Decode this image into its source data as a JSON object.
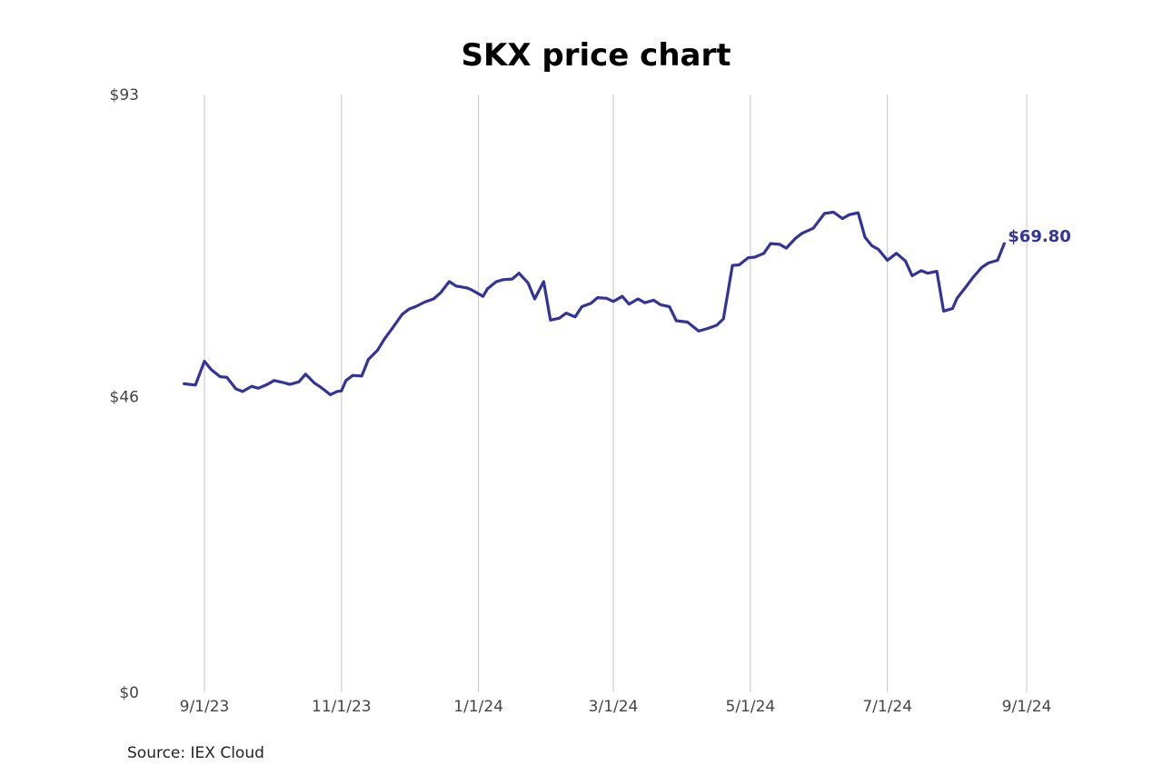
{
  "chart_data": {
    "type": "line",
    "title": "SKX price chart",
    "source": "Source: IEX Cloud",
    "xlabel": "",
    "ylabel": "",
    "ylim": [
      0,
      93
    ],
    "yticks": [
      0,
      46,
      93
    ],
    "ytick_labels": [
      "$0",
      "$46",
      "$93"
    ],
    "xticks": [
      "2023-09-01",
      "2023-11-01",
      "2024-01-01",
      "2024-03-01",
      "2024-05-01",
      "2024-07-01",
      "2024-09-01"
    ],
    "xtick_labels": [
      "9/1/23",
      "11/1/23",
      "1/1/24",
      "3/1/24",
      "5/1/24",
      "7/1/24",
      "9/1/24"
    ],
    "xlim": [
      "2023-08-23",
      "2024-09-01"
    ],
    "grid": "vertical",
    "last_value_label": "$69.80",
    "line_color": "#333399",
    "series": [
      {
        "x": [
          "2023-08-23",
          "2023-08-28",
          "2023-09-01",
          "2023-09-04",
          "2023-09-08",
          "2023-09-11",
          "2023-09-15",
          "2023-09-18",
          "2023-09-22",
          "2023-09-25",
          "2023-09-29",
          "2023-10-02",
          "2023-10-06",
          "2023-10-09",
          "2023-10-13",
          "2023-10-16",
          "2023-10-20",
          "2023-10-23",
          "2023-10-27",
          "2023-10-30",
          "2023-11-01",
          "2023-11-03",
          "2023-11-06",
          "2023-11-10",
          "2023-11-13",
          "2023-11-17",
          "2023-11-20",
          "2023-11-24",
          "2023-11-28",
          "2023-12-01",
          "2023-12-04",
          "2023-12-08",
          "2023-12-12",
          "2023-12-15",
          "2023-12-19",
          "2023-12-22",
          "2023-12-27",
          "2023-12-29",
          "2024-01-03",
          "2024-01-05",
          "2024-01-09",
          "2024-01-12",
          "2024-01-16",
          "2024-01-19",
          "2024-01-23",
          "2024-01-26",
          "2024-01-30",
          "2024-02-02",
          "2024-02-06",
          "2024-02-09",
          "2024-02-13",
          "2024-02-16",
          "2024-02-20",
          "2024-02-23",
          "2024-02-27",
          "2024-03-01",
          "2024-03-05",
          "2024-03-08",
          "2024-03-12",
          "2024-03-15",
          "2024-03-19",
          "2024-03-22",
          "2024-03-26",
          "2024-03-29",
          "2024-04-03",
          "2024-04-08",
          "2024-04-12",
          "2024-04-16",
          "2024-04-19",
          "2024-04-23",
          "2024-04-26",
          "2024-04-30",
          "2024-05-03",
          "2024-05-07",
          "2024-05-10",
          "2024-05-14",
          "2024-05-17",
          "2024-05-21",
          "2024-05-24",
          "2024-05-29",
          "2024-06-03",
          "2024-06-07",
          "2024-06-11",
          "2024-06-14",
          "2024-06-18",
          "2024-06-21",
          "2024-06-24",
          "2024-06-27",
          "2024-07-01",
          "2024-07-05",
          "2024-07-09",
          "2024-07-12",
          "2024-07-16",
          "2024-07-19",
          "2024-07-23",
          "2024-07-26",
          "2024-07-30",
          "2024-08-01",
          "2024-08-05",
          "2024-08-08",
          "2024-08-12",
          "2024-08-15",
          "2024-08-19",
          "2024-08-22"
        ],
        "values": [
          48.0,
          47.8,
          51.5,
          50.2,
          49.1,
          49.0,
          47.2,
          46.8,
          47.6,
          47.3,
          47.9,
          48.5,
          48.2,
          47.9,
          48.3,
          49.5,
          48.1,
          47.4,
          46.3,
          46.8,
          46.9,
          48.5,
          49.3,
          49.2,
          51.8,
          53.2,
          54.9,
          56.8,
          58.8,
          59.6,
          60.0,
          60.7,
          61.2,
          62.1,
          63.9,
          63.2,
          62.9,
          62.6,
          61.6,
          62.8,
          63.9,
          64.2,
          64.3,
          65.2,
          63.7,
          61.2,
          63.9,
          57.9,
          58.2,
          59.0,
          58.4,
          60.0,
          60.5,
          61.4,
          61.3,
          60.8,
          61.6,
          60.4,
          61.2,
          60.6,
          61.0,
          60.3,
          60.0,
          57.8,
          57.6,
          56.2,
          56.6,
          57.1,
          58.1,
          66.4,
          66.5,
          67.6,
          67.7,
          68.3,
          69.8,
          69.7,
          69.1,
          70.6,
          71.4,
          72.2,
          74.5,
          74.7,
          73.7,
          74.3,
          74.6,
          70.8,
          69.5,
          68.9,
          67.2,
          68.3,
          67.1,
          64.8,
          65.6,
          65.2,
          65.5,
          59.3,
          59.7,
          61.3,
          63.1,
          64.5,
          66.1,
          66.8,
          67.2,
          69.8
        ]
      }
    ]
  }
}
